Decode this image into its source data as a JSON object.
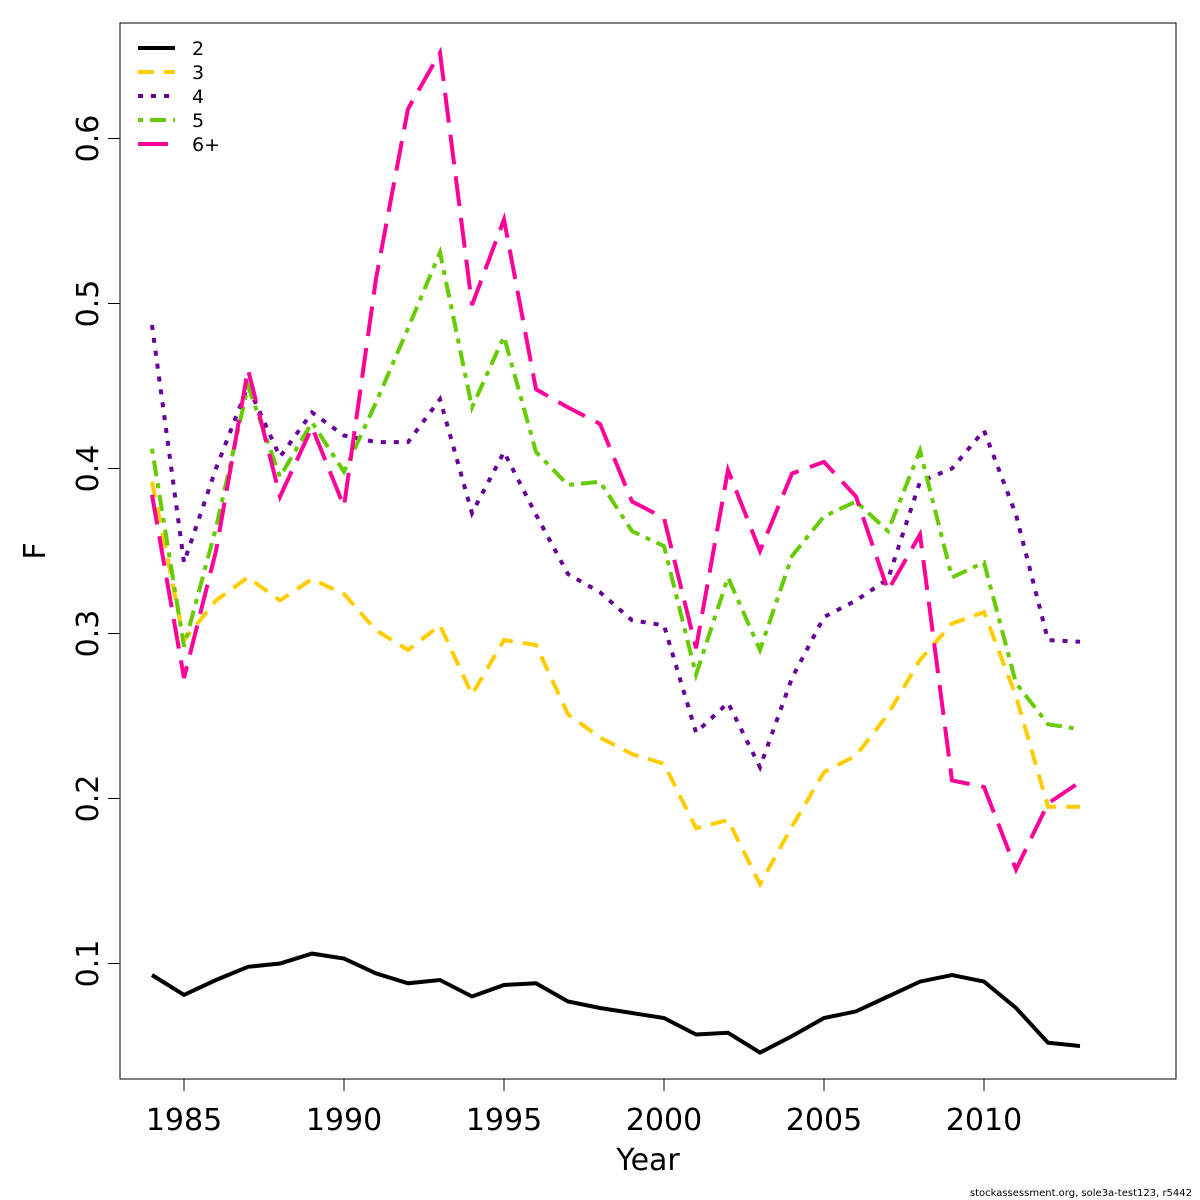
{
  "chart_data": {
    "type": "line",
    "title": "",
    "xlabel": "Year",
    "ylabel": "F",
    "xlim": [
      1983,
      2016
    ],
    "ylim": [
      0.03,
      0.67
    ],
    "x_ticks": [
      1985,
      1990,
      1995,
      2000,
      2005,
      2010
    ],
    "y_ticks": [
      0.1,
      0.2,
      0.3,
      0.4,
      0.5,
      0.6
    ],
    "x_tick_labels": [
      "1985",
      "1990",
      "1995",
      "2000",
      "2005",
      "2010"
    ],
    "y_tick_labels": [
      "0.1",
      "0.2",
      "0.3",
      "0.4",
      "0.5",
      "0.6"
    ],
    "grid": false,
    "legend_position": "top-left",
    "x": [
      1984,
      1985,
      1986,
      1987,
      1988,
      1989,
      1990,
      1991,
      1992,
      1993,
      1994,
      1995,
      1996,
      1997,
      1998,
      1999,
      2000,
      2001,
      2002,
      2003,
      2004,
      2005,
      2006,
      2007,
      2008,
      2009,
      2010,
      2011,
      2012,
      2013
    ],
    "series": [
      {
        "name": "2",
        "color": "#000000",
        "dash": "solid",
        "values": [
          0.093,
          0.081,
          0.09,
          0.098,
          0.1,
          0.106,
          0.103,
          0.094,
          0.088,
          0.09,
          0.08,
          0.087,
          0.088,
          0.077,
          0.073,
          0.07,
          0.067,
          0.057,
          0.058,
          0.046,
          0.056,
          0.067,
          0.071,
          0.08,
          0.089,
          0.093,
          0.089,
          0.073,
          0.052,
          0.05
        ]
      },
      {
        "name": "3",
        "color": "#ffcc00",
        "dash": "dashed",
        "values": [
          0.392,
          0.296,
          0.32,
          0.334,
          0.32,
          0.333,
          0.324,
          0.302,
          0.29,
          0.305,
          0.263,
          0.296,
          0.293,
          0.251,
          0.237,
          0.227,
          0.221,
          0.182,
          0.187,
          0.148,
          0.183,
          0.216,
          0.226,
          0.251,
          0.284,
          0.306,
          0.313,
          0.262,
          0.195,
          0.195
        ]
      },
      {
        "name": "4",
        "color": "#660099",
        "dash": "dotted",
        "values": [
          0.487,
          0.343,
          0.4,
          0.45,
          0.407,
          0.434,
          0.42,
          0.416,
          0.416,
          0.442,
          0.373,
          0.41,
          0.372,
          0.336,
          0.325,
          0.308,
          0.305,
          0.24,
          0.258,
          0.219,
          0.273,
          0.31,
          0.32,
          0.333,
          0.392,
          0.4,
          0.423,
          0.372,
          0.296,
          0.295
        ]
      },
      {
        "name": "5",
        "color": "#66cc00",
        "dash": "dotdash",
        "values": [
          0.412,
          0.292,
          0.364,
          0.45,
          0.395,
          0.428,
          0.398,
          0.44,
          0.485,
          0.531,
          0.437,
          0.48,
          0.41,
          0.39,
          0.392,
          0.362,
          0.353,
          0.275,
          0.334,
          0.29,
          0.347,
          0.371,
          0.38,
          0.362,
          0.411,
          0.334,
          0.343,
          0.27,
          0.245,
          0.242
        ]
      },
      {
        "name": "6+",
        "color": "#ff0099",
        "dash": "longdash",
        "values": [
          0.384,
          0.273,
          0.35,
          0.46,
          0.383,
          0.425,
          0.377,
          0.515,
          0.618,
          0.652,
          0.499,
          0.551,
          0.448,
          0.437,
          0.427,
          0.38,
          0.37,
          0.291,
          0.399,
          0.35,
          0.397,
          0.404,
          0.383,
          0.326,
          0.36,
          0.211,
          0.207,
          0.157,
          0.197,
          0.21
        ]
      }
    ]
  },
  "footnote": "stockassessment.org, sole3a-test123, r5442"
}
